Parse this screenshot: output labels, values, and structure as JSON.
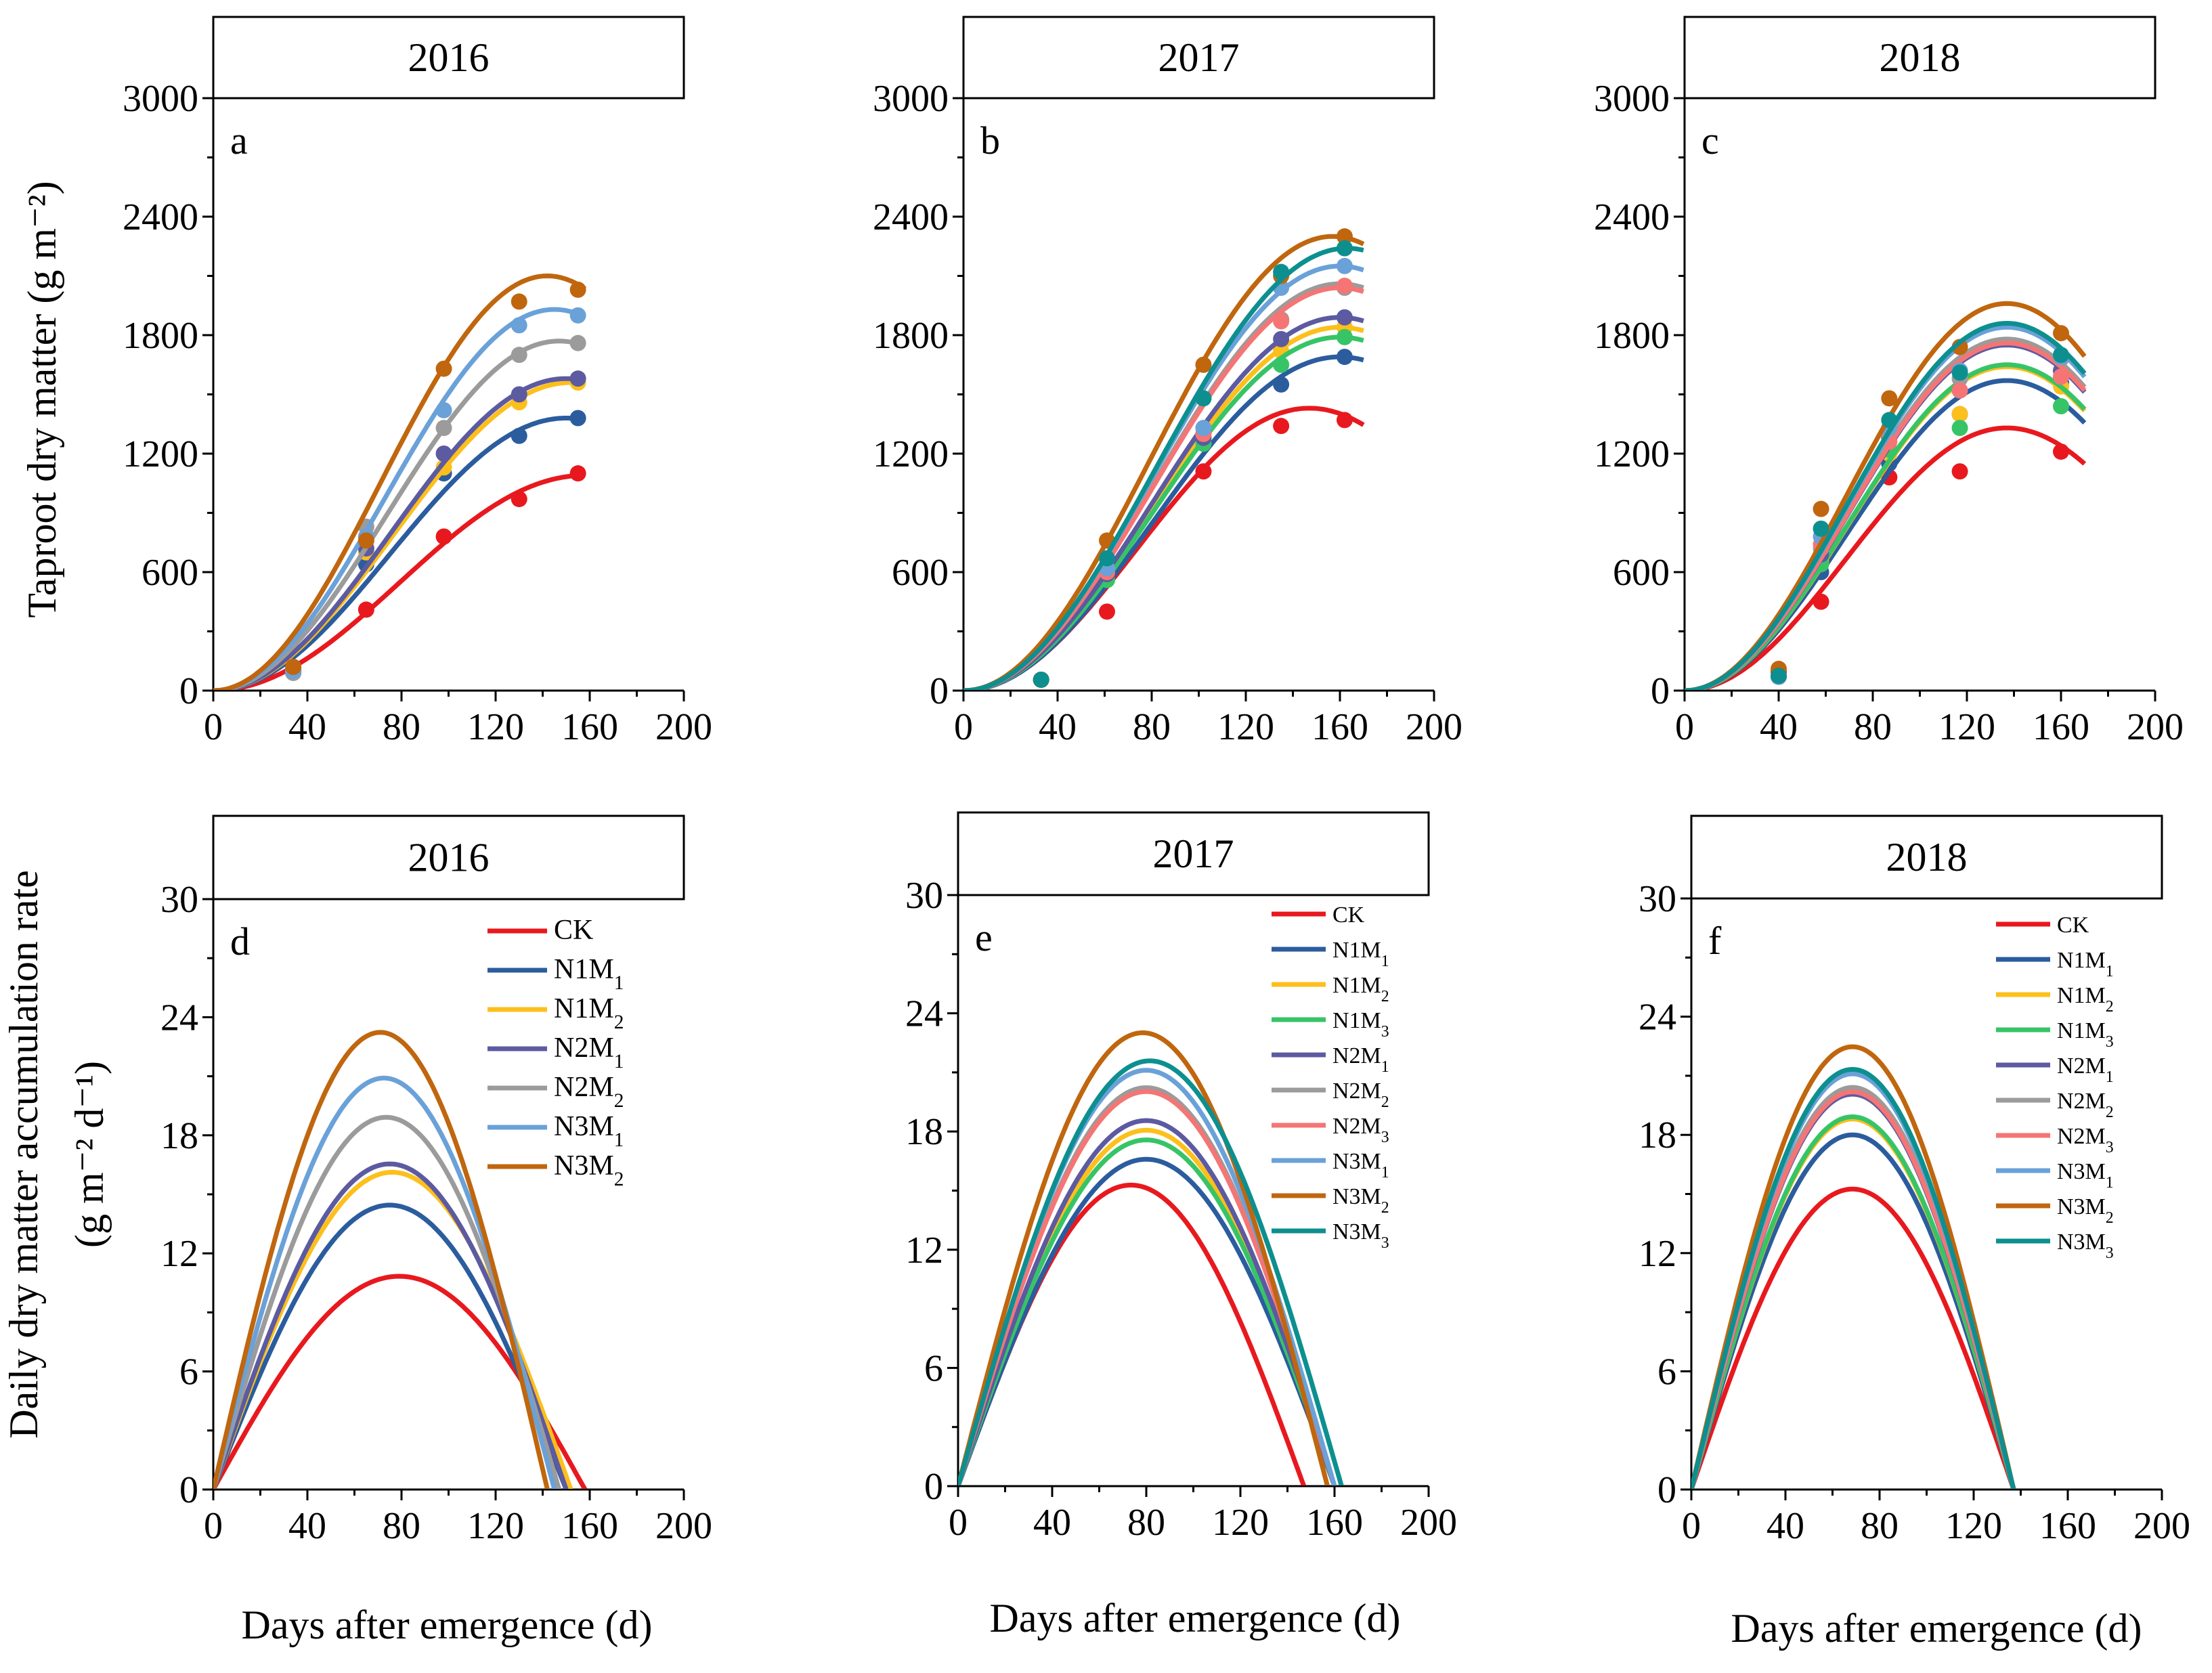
{
  "figure": {
    "ylabel_top": "Taproot dry matter (g m⁻²)",
    "ylabel_bottom_line1": "Daily dry matter accumulation rate",
    "ylabel_bottom_line2": "(g m⁻² d⁻¹)",
    "xlabel": "Days after emergence (d)"
  },
  "colors": {
    "CK": "#e8191e",
    "N1M1": "#2b5c9e",
    "N1M2": "#fcbf1c",
    "N1M3": "#37c466",
    "N2M1": "#5c5aa0",
    "N2M2": "#9b9b9b",
    "N2M3": "#f57575",
    "N3M1": "#6aa1d8",
    "N3M2": "#c0660e",
    "N3M3": "#0d8f8f"
  },
  "chart_data": [
    {
      "type": "line",
      "panel": "a",
      "year": "2016",
      "xlim": [
        0,
        200
      ],
      "ylim": [
        0,
        3000
      ],
      "xticks": [
        "0",
        "40",
        "80",
        "120",
        "160",
        "200"
      ],
      "yticks": [
        "0",
        "600",
        "1200",
        "1800",
        "2400",
        "3000"
      ],
      "series": [
        {
          "name": "CK",
          "K": 1090,
          "T": 158,
          "end": 158,
          "points": [
            [
              34,
              100
            ],
            [
              65,
              410
            ],
            [
              98,
              780
            ],
            [
              130,
              970
            ],
            [
              155,
              1100
            ]
          ]
        },
        {
          "name": "N1M1",
          "K": 1380,
          "T": 150,
          "end": 158,
          "points": [
            [
              34,
              90
            ],
            [
              65,
              640
            ],
            [
              98,
              1100
            ],
            [
              130,
              1290
            ],
            [
              155,
              1380
            ]
          ]
        },
        {
          "name": "N1M2",
          "K": 1560,
          "T": 152,
          "end": 158,
          "points": [
            [
              34,
              100
            ],
            [
              65,
              700
            ],
            [
              98,
              1130
            ],
            [
              130,
              1460
            ],
            [
              155,
              1560
            ]
          ]
        },
        {
          "name": "N2M1",
          "K": 1580,
          "T": 150,
          "end": 158,
          "points": [
            [
              34,
              110
            ],
            [
              65,
              720
            ],
            [
              98,
              1200
            ],
            [
              130,
              1500
            ],
            [
              155,
              1580
            ]
          ]
        },
        {
          "name": "N2M2",
          "K": 1770,
          "T": 147,
          "end": 158,
          "points": [
            [
              34,
              90
            ],
            [
              65,
              830
            ],
            [
              98,
              1330
            ],
            [
              130,
              1700
            ],
            [
              155,
              1760
            ]
          ]
        },
        {
          "name": "N3M1",
          "K": 1930,
          "T": 145,
          "end": 158,
          "points": [
            [
              34,
              100
            ],
            [
              65,
              780
            ],
            [
              98,
              1420
            ],
            [
              130,
              1850
            ],
            [
              155,
              1900
            ]
          ]
        },
        {
          "name": "N3M2",
          "K": 2100,
          "T": 142,
          "end": 158,
          "points": [
            [
              34,
              120
            ],
            [
              65,
              760
            ],
            [
              98,
              1630
            ],
            [
              130,
              1970
            ],
            [
              155,
              2030
            ]
          ]
        }
      ]
    },
    {
      "type": "line",
      "panel": "b",
      "year": "2017",
      "xlim": [
        0,
        200
      ],
      "ylim": [
        0,
        3000
      ],
      "xticks": [
        "0",
        "40",
        "80",
        "120",
        "160",
        "200"
      ],
      "yticks": [
        "0",
        "600",
        "1200",
        "1800",
        "2400",
        "3000"
      ],
      "series": [
        {
          "name": "CK",
          "K": 1430,
          "T": 147,
          "end": 170,
          "points": [
            [
              33,
              55
            ],
            [
              61,
              400
            ],
            [
              102,
              1110
            ],
            [
              135,
              1340
            ],
            [
              162,
              1370
            ]
          ]
        },
        {
          "name": "N1M1",
          "K": 1690,
          "T": 160,
          "end": 170,
          "points": [
            [
              33,
              55
            ],
            [
              61,
              570
            ],
            [
              102,
              1260
            ],
            [
              135,
              1550
            ],
            [
              162,
              1690
            ]
          ]
        },
        {
          "name": "N1M2",
          "K": 1840,
          "T": 160,
          "end": 170,
          "points": [
            [
              33,
              55
            ],
            [
              61,
              590
            ],
            [
              102,
              1280
            ],
            [
              135,
              1720
            ],
            [
              162,
              1840
            ]
          ]
        },
        {
          "name": "N1M3",
          "K": 1790,
          "T": 160,
          "end": 170,
          "points": [
            [
              33,
              55
            ],
            [
              61,
              560
            ],
            [
              102,
              1250
            ],
            [
              135,
              1650
            ],
            [
              162,
              1790
            ]
          ]
        },
        {
          "name": "N2M1",
          "K": 1890,
          "T": 160,
          "end": 170,
          "points": [
            [
              33,
              55
            ],
            [
              61,
              590
            ],
            [
              102,
              1280
            ],
            [
              135,
              1780
            ],
            [
              162,
              1890
            ]
          ]
        },
        {
          "name": "N2M2",
          "K": 2060,
          "T": 160,
          "end": 170,
          "points": [
            [
              33,
              55
            ],
            [
              61,
              610
            ],
            [
              102,
              1300
            ],
            [
              135,
              1880
            ],
            [
              162,
              2040
            ]
          ]
        },
        {
          "name": "N2M3",
          "K": 2040,
          "T": 160,
          "end": 170,
          "points": [
            [
              33,
              55
            ],
            [
              61,
              600
            ],
            [
              102,
              1300
            ],
            [
              135,
              1870
            ],
            [
              162,
              2050
            ]
          ]
        },
        {
          "name": "N3M1",
          "K": 2150,
          "T": 160,
          "end": 170,
          "points": [
            [
              33,
              55
            ],
            [
              61,
              620
            ],
            [
              102,
              1330
            ],
            [
              135,
              2040
            ],
            [
              162,
              2150
            ]
          ]
        },
        {
          "name": "N3M2",
          "K": 2300,
          "T": 157,
          "end": 170,
          "points": [
            [
              33,
              55
            ],
            [
              61,
              760
            ],
            [
              102,
              1650
            ],
            [
              135,
              2100
            ],
            [
              162,
              2300
            ]
          ]
        },
        {
          "name": "N3M3",
          "K": 2240,
          "T": 163,
          "end": 170,
          "points": [
            [
              33,
              55
            ],
            [
              61,
              670
            ],
            [
              102,
              1480
            ],
            [
              135,
              2120
            ],
            [
              162,
              2240
            ]
          ]
        }
      ]
    },
    {
      "type": "line",
      "panel": "c",
      "year": "2018",
      "xlim": [
        0,
        200
      ],
      "ylim": [
        0,
        3000
      ],
      "xticks": [
        "0",
        "40",
        "80",
        "120",
        "160",
        "200"
      ],
      "yticks": [
        "0",
        "600",
        "1200",
        "1800",
        "2400",
        "3000"
      ],
      "series": [
        {
          "name": "CK",
          "K": 1330,
          "T": 137,
          "end": 170,
          "points": [
            [
              40,
              95
            ],
            [
              58,
              450
            ],
            [
              87,
              1080
            ],
            [
              117,
              1110
            ],
            [
              160,
              1210
            ]
          ]
        },
        {
          "name": "N1M1",
          "K": 1570,
          "T": 137,
          "end": 170,
          "points": [
            [
              40,
              70
            ],
            [
              58,
              600
            ],
            [
              87,
              1150
            ],
            [
              117,
              1400
            ],
            [
              160,
              1560
            ]
          ]
        },
        {
          "name": "N1M2",
          "K": 1640,
          "T": 137,
          "end": 170,
          "points": [
            [
              40,
              70
            ],
            [
              58,
              650
            ],
            [
              87,
              1200
            ],
            [
              117,
              1400
            ],
            [
              160,
              1540
            ]
          ]
        },
        {
          "name": "N1M3",
          "K": 1650,
          "T": 137,
          "end": 170,
          "points": [
            [
              40,
              70
            ],
            [
              58,
              640
            ],
            [
              87,
              1220
            ],
            [
              117,
              1330
            ],
            [
              160,
              1440
            ]
          ]
        },
        {
          "name": "N2M1",
          "K": 1750,
          "T": 137,
          "end": 170,
          "points": [
            [
              40,
              70
            ],
            [
              58,
              690
            ],
            [
              87,
              1280
            ],
            [
              117,
              1520
            ],
            [
              160,
              1620
            ]
          ]
        },
        {
          "name": "N2M2",
          "K": 1780,
          "T": 137,
          "end": 170,
          "points": [
            [
              40,
              70
            ],
            [
              58,
              720
            ],
            [
              87,
              1300
            ],
            [
              117,
              1580
            ],
            [
              160,
              1680
            ]
          ]
        },
        {
          "name": "N2M3",
          "K": 1760,
          "T": 137,
          "end": 170,
          "points": [
            [
              40,
              70
            ],
            [
              58,
              740
            ],
            [
              87,
              1260
            ],
            [
              117,
              1520
            ],
            [
              160,
              1590
            ]
          ]
        },
        {
          "name": "N3M1",
          "K": 1840,
          "T": 137,
          "end": 170,
          "points": [
            [
              40,
              70
            ],
            [
              58,
              780
            ],
            [
              87,
              1330
            ],
            [
              117,
              1620
            ],
            [
              160,
              1690
            ]
          ]
        },
        {
          "name": "N3M2",
          "K": 1960,
          "T": 137,
          "end": 170,
          "points": [
            [
              40,
              110
            ],
            [
              58,
              920
            ],
            [
              87,
              1480
            ],
            [
              117,
              1740
            ],
            [
              160,
              1810
            ]
          ]
        },
        {
          "name": "N3M3",
          "K": 1860,
          "T": 137,
          "end": 170,
          "points": [
            [
              40,
              75
            ],
            [
              58,
              820
            ],
            [
              87,
              1370
            ],
            [
              117,
              1610
            ],
            [
              160,
              1700
            ]
          ]
        }
      ]
    },
    {
      "type": "line",
      "panel": "d",
      "year": "2016",
      "xlim": [
        0,
        200
      ],
      "ylim": [
        0,
        30
      ],
      "xticks": [
        "0",
        "40",
        "80",
        "120",
        "160",
        "200"
      ],
      "yticks": [
        "0",
        "6",
        "12",
        "18",
        "24",
        "30"
      ],
      "legend": [
        "CK",
        "N1M1",
        "N1M2",
        "N2M1",
        "N2M2",
        "N3M1",
        "N3M2"
      ],
      "series": [
        {
          "name": "CK",
          "K": 1090,
          "T": 158
        },
        {
          "name": "N1M1",
          "K": 1380,
          "T": 150
        },
        {
          "name": "N1M2",
          "K": 1560,
          "T": 152
        },
        {
          "name": "N2M1",
          "K": 1580,
          "T": 150
        },
        {
          "name": "N2M2",
          "K": 1770,
          "T": 147
        },
        {
          "name": "N3M1",
          "K": 1930,
          "T": 145
        },
        {
          "name": "N3M2",
          "K": 2100,
          "T": 142
        }
      ]
    },
    {
      "type": "line",
      "panel": "e",
      "year": "2017",
      "xlim": [
        0,
        200
      ],
      "ylim": [
        0,
        30
      ],
      "xticks": [
        "0",
        "40",
        "80",
        "120",
        "160",
        "200"
      ],
      "yticks": [
        "0",
        "6",
        "12",
        "18",
        "24",
        "30"
      ],
      "legend": [
        "CK",
        "N1M1",
        "N1M2",
        "N1M3",
        "N2M1",
        "N2M2",
        "N2M3",
        "N3M1",
        "N3M2",
        "N3M3"
      ],
      "series": [
        {
          "name": "CK",
          "K": 1430,
          "T": 147
        },
        {
          "name": "N1M1",
          "K": 1690,
          "T": 160
        },
        {
          "name": "N1M2",
          "K": 1840,
          "T": 160
        },
        {
          "name": "N1M3",
          "K": 1790,
          "T": 160
        },
        {
          "name": "N2M1",
          "K": 1890,
          "T": 160
        },
        {
          "name": "N2M2",
          "K": 2060,
          "T": 160
        },
        {
          "name": "N2M3",
          "K": 2040,
          "T": 160
        },
        {
          "name": "N3M1",
          "K": 2150,
          "T": 160
        },
        {
          "name": "N3M2",
          "K": 2300,
          "T": 157
        },
        {
          "name": "N3M3",
          "K": 2240,
          "T": 163
        }
      ]
    },
    {
      "type": "line",
      "panel": "f",
      "year": "2018",
      "xlim": [
        0,
        200
      ],
      "ylim": [
        0,
        30
      ],
      "xticks": [
        "0",
        "40",
        "80",
        "120",
        "160",
        "200"
      ],
      "yticks": [
        "0",
        "6",
        "12",
        "18",
        "24",
        "30"
      ],
      "legend": [
        "CK",
        "N1M1",
        "N1M2",
        "N1M3",
        "N2M1",
        "N2M2",
        "N2M3",
        "N3M1",
        "N3M2",
        "N3M3"
      ],
      "series": [
        {
          "name": "CK",
          "K": 1330,
          "T": 137
        },
        {
          "name": "N1M1",
          "K": 1570,
          "T": 137
        },
        {
          "name": "N1M2",
          "K": 1640,
          "T": 137
        },
        {
          "name": "N1M3",
          "K": 1650,
          "T": 137
        },
        {
          "name": "N2M1",
          "K": 1750,
          "T": 137
        },
        {
          "name": "N2M2",
          "K": 1780,
          "T": 137
        },
        {
          "name": "N2M3",
          "K": 1760,
          "T": 137
        },
        {
          "name": "N3M1",
          "K": 1840,
          "T": 137
        },
        {
          "name": "N3M2",
          "K": 1960,
          "T": 137
        },
        {
          "name": "N3M3",
          "K": 1860,
          "T": 137
        }
      ]
    }
  ]
}
